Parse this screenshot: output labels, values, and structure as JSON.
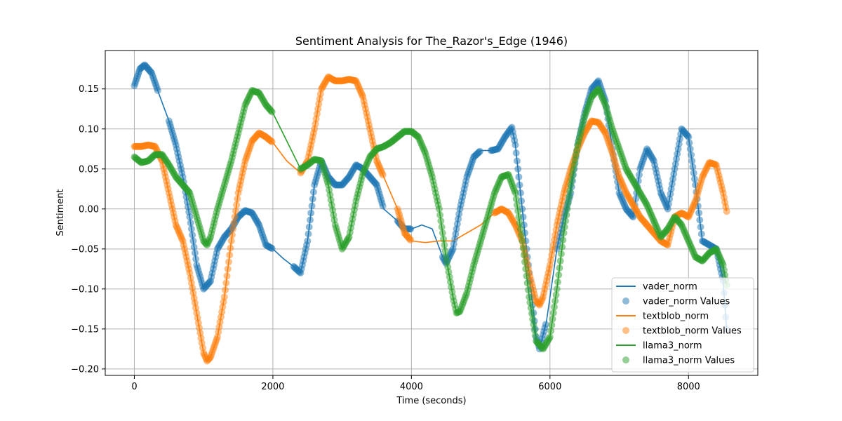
{
  "chart_data": {
    "type": "line",
    "title": "Sentiment Analysis for The_Razor's_Edge (1946)",
    "xlabel": "Time (seconds)",
    "ylabel": "Sentiment",
    "xlim": [
      -420,
      9000
    ],
    "ylim": [
      -0.208,
      0.198
    ],
    "xticks": [
      0,
      2000,
      4000,
      6000,
      8000
    ],
    "yticks": [
      -0.2,
      -0.15,
      -0.1,
      -0.05,
      0.0,
      0.05,
      0.1,
      0.15
    ],
    "ytick_labels": [
      "−0.20",
      "−0.15",
      "−0.10",
      "−0.05",
      "0.00",
      "0.05",
      "0.10",
      "0.15"
    ],
    "grid": true,
    "legend_position": "lower right",
    "legend": [
      {
        "label": "vader_norm",
        "kind": "line",
        "color": "#1f77b4"
      },
      {
        "label": "vader_norm Values",
        "kind": "marker",
        "color": "#1f77b4"
      },
      {
        "label": "textblob_norm",
        "kind": "line",
        "color": "#ff7f0e"
      },
      {
        "label": "textblob_norm Values",
        "kind": "marker",
        "color": "#ff7f0e"
      },
      {
        "label": "llama3_norm",
        "kind": "line",
        "color": "#2ca02c"
      },
      {
        "label": "llama3_norm Values",
        "kind": "marker",
        "color": "#2ca02c"
      }
    ],
    "series": [
      {
        "name": "vader_norm",
        "color": "#1f77b4",
        "points": [
          [
            0,
            0.154
          ],
          [
            80,
            0.175
          ],
          [
            150,
            0.18
          ],
          [
            250,
            0.17
          ],
          [
            350,
            0.145
          ],
          [
            500,
            0.11
          ],
          [
            600,
            0.08
          ],
          [
            700,
            0.04
          ],
          [
            800,
            -0.01
          ],
          [
            900,
            -0.07
          ],
          [
            1000,
            -0.1
          ],
          [
            1100,
            -0.09
          ],
          [
            1200,
            -0.05
          ],
          [
            1300,
            -0.035
          ],
          [
            1400,
            -0.025
          ],
          [
            1500,
            -0.01
          ],
          [
            1600,
            -0.002
          ],
          [
            1700,
            -0.005
          ],
          [
            1800,
            -0.02
          ],
          [
            1900,
            -0.045
          ],
          [
            2000,
            -0.05
          ],
          [
            2150,
            -0.062
          ],
          [
            2300,
            -0.072
          ],
          [
            2400,
            -0.08
          ],
          [
            2500,
            -0.04
          ],
          [
            2600,
            0.03
          ],
          [
            2700,
            0.06
          ],
          [
            2800,
            0.04
          ],
          [
            2900,
            0.03
          ],
          [
            3000,
            0.03
          ],
          [
            3100,
            0.04
          ],
          [
            3200,
            0.055
          ],
          [
            3300,
            0.05
          ],
          [
            3400,
            0.04
          ],
          [
            3500,
            0.03
          ],
          [
            3600,
            0.0
          ],
          [
            3800,
            -0.015
          ],
          [
            3900,
            -0.025
          ],
          [
            4000,
            -0.025
          ],
          [
            4150,
            -0.02
          ],
          [
            4300,
            -0.025
          ],
          [
            4450,
            -0.06
          ],
          [
            4500,
            -0.068
          ],
          [
            4600,
            -0.05
          ],
          [
            4700,
            0.0
          ],
          [
            4800,
            0.04
          ],
          [
            4900,
            0.065
          ],
          [
            5000,
            0.073
          ],
          [
            5150,
            0.073
          ],
          [
            5250,
            0.075
          ],
          [
            5350,
            0.09
          ],
          [
            5450,
            0.102
          ],
          [
            5500,
            0.08
          ],
          [
            5600,
            0.0
          ],
          [
            5700,
            -0.08
          ],
          [
            5800,
            -0.16
          ],
          [
            5850,
            -0.175
          ],
          [
            5950,
            -0.14
          ],
          [
            6100,
            -0.05
          ],
          [
            6200,
            -0.01
          ],
          [
            6300,
            0.02
          ],
          [
            6400,
            0.08
          ],
          [
            6500,
            0.12
          ],
          [
            6600,
            0.15
          ],
          [
            6700,
            0.16
          ],
          [
            6800,
            0.135
          ],
          [
            6900,
            0.075
          ],
          [
            7000,
            0.02
          ],
          [
            7100,
            0.0
          ],
          [
            7200,
            -0.01
          ],
          [
            7300,
            0.05
          ],
          [
            7400,
            0.075
          ],
          [
            7500,
            0.06
          ],
          [
            7600,
            0.02
          ],
          [
            7700,
            0.0
          ],
          [
            7800,
            0.05
          ],
          [
            7900,
            0.1
          ],
          [
            8000,
            0.09
          ],
          [
            8100,
            0.03
          ],
          [
            8200,
            -0.04
          ],
          [
            8300,
            -0.045
          ],
          [
            8400,
            -0.05
          ],
          [
            8500,
            -0.09
          ],
          [
            8550,
            -0.15
          ]
        ]
      },
      {
        "name": "textblob_norm",
        "color": "#ff7f0e",
        "points": [
          [
            0,
            0.078
          ],
          [
            100,
            0.078
          ],
          [
            200,
            0.08
          ],
          [
            300,
            0.078
          ],
          [
            400,
            0.06
          ],
          [
            500,
            0.02
          ],
          [
            600,
            -0.02
          ],
          [
            700,
            -0.04
          ],
          [
            800,
            -0.08
          ],
          [
            900,
            -0.13
          ],
          [
            1000,
            -0.18
          ],
          [
            1050,
            -0.19
          ],
          [
            1100,
            -0.185
          ],
          [
            1200,
            -0.16
          ],
          [
            1300,
            -0.11
          ],
          [
            1400,
            -0.04
          ],
          [
            1500,
            0.02
          ],
          [
            1600,
            0.06
          ],
          [
            1700,
            0.085
          ],
          [
            1800,
            0.095
          ],
          [
            1900,
            0.09
          ],
          [
            2000,
            0.083
          ],
          [
            2200,
            0.06
          ],
          [
            2400,
            0.045
          ],
          [
            2500,
            0.06
          ],
          [
            2600,
            0.1
          ],
          [
            2700,
            0.15
          ],
          [
            2800,
            0.165
          ],
          [
            2900,
            0.16
          ],
          [
            3000,
            0.16
          ],
          [
            3100,
            0.162
          ],
          [
            3200,
            0.16
          ],
          [
            3300,
            0.14
          ],
          [
            3400,
            0.1
          ],
          [
            3500,
            0.06
          ],
          [
            3600,
            0.04
          ],
          [
            3800,
            0.0
          ],
          [
            3900,
            -0.03
          ],
          [
            4000,
            -0.04
          ],
          [
            4200,
            -0.042
          ],
          [
            4400,
            -0.04
          ],
          [
            4600,
            -0.04
          ],
          [
            4800,
            -0.03
          ],
          [
            5000,
            -0.02
          ],
          [
            5200,
            -0.005
          ],
          [
            5300,
            0.0
          ],
          [
            5400,
            -0.005
          ],
          [
            5500,
            -0.02
          ],
          [
            5600,
            -0.04
          ],
          [
            5700,
            -0.08
          ],
          [
            5800,
            -0.115
          ],
          [
            5850,
            -0.12
          ],
          [
            5900,
            -0.11
          ],
          [
            6000,
            -0.07
          ],
          [
            6100,
            -0.02
          ],
          [
            6200,
            0.02
          ],
          [
            6300,
            0.05
          ],
          [
            6400,
            0.075
          ],
          [
            6500,
            0.095
          ],
          [
            6600,
            0.11
          ],
          [
            6700,
            0.108
          ],
          [
            6800,
            0.095
          ],
          [
            6900,
            0.07
          ],
          [
            7000,
            0.04
          ],
          [
            7100,
            0.02
          ],
          [
            7200,
            0.005
          ],
          [
            7300,
            -0.01
          ],
          [
            7400,
            -0.02
          ],
          [
            7500,
            -0.03
          ],
          [
            7600,
            -0.04
          ],
          [
            7700,
            -0.045
          ],
          [
            7800,
            -0.01
          ],
          [
            7900,
            -0.005
          ],
          [
            8000,
            -0.01
          ],
          [
            8100,
            0.01
          ],
          [
            8200,
            0.04
          ],
          [
            8300,
            0.058
          ],
          [
            8400,
            0.055
          ],
          [
            8500,
            0.02
          ],
          [
            8550,
            -0.003
          ]
        ]
      },
      {
        "name": "llama3_norm",
        "color": "#2ca02c",
        "points": [
          [
            0,
            0.065
          ],
          [
            100,
            0.058
          ],
          [
            200,
            0.06
          ],
          [
            300,
            0.068
          ],
          [
            400,
            0.068
          ],
          [
            500,
            0.055
          ],
          [
            600,
            0.04
          ],
          [
            700,
            0.03
          ],
          [
            800,
            0.02
          ],
          [
            900,
            -0.01
          ],
          [
            1000,
            -0.04
          ],
          [
            1050,
            -0.045
          ],
          [
            1100,
            -0.035
          ],
          [
            1200,
            0.0
          ],
          [
            1300,
            0.03
          ],
          [
            1400,
            0.06
          ],
          [
            1500,
            0.095
          ],
          [
            1600,
            0.13
          ],
          [
            1700,
            0.148
          ],
          [
            1800,
            0.145
          ],
          [
            1900,
            0.13
          ],
          [
            2000,
            0.12
          ],
          [
            2200,
            0.085
          ],
          [
            2400,
            0.05
          ],
          [
            2500,
            0.055
          ],
          [
            2600,
            0.062
          ],
          [
            2700,
            0.06
          ],
          [
            2800,
            0.03
          ],
          [
            2900,
            -0.02
          ],
          [
            3000,
            -0.05
          ],
          [
            3100,
            -0.035
          ],
          [
            3200,
            0.01
          ],
          [
            3300,
            0.045
          ],
          [
            3400,
            0.065
          ],
          [
            3500,
            0.075
          ],
          [
            3600,
            0.078
          ],
          [
            3700,
            0.083
          ],
          [
            3800,
            0.09
          ],
          [
            3900,
            0.097
          ],
          [
            4000,
            0.097
          ],
          [
            4100,
            0.09
          ],
          [
            4200,
            0.07
          ],
          [
            4300,
            0.04
          ],
          [
            4400,
            0.0
          ],
          [
            4500,
            -0.06
          ],
          [
            4600,
            -0.11
          ],
          [
            4650,
            -0.13
          ],
          [
            4700,
            -0.128
          ],
          [
            4800,
            -0.105
          ],
          [
            4900,
            -0.07
          ],
          [
            5000,
            -0.04
          ],
          [
            5100,
            -0.01
          ],
          [
            5200,
            0.02
          ],
          [
            5300,
            0.04
          ],
          [
            5400,
            0.043
          ],
          [
            5500,
            0.02
          ],
          [
            5600,
            -0.04
          ],
          [
            5700,
            -0.11
          ],
          [
            5800,
            -0.165
          ],
          [
            5900,
            -0.175
          ],
          [
            6000,
            -0.16
          ],
          [
            6100,
            -0.1
          ],
          [
            6200,
            -0.03
          ],
          [
            6300,
            0.03
          ],
          [
            6400,
            0.08
          ],
          [
            6500,
            0.115
          ],
          [
            6600,
            0.14
          ],
          [
            6700,
            0.15
          ],
          [
            6800,
            0.13
          ],
          [
            6900,
            0.1
          ],
          [
            7000,
            0.075
          ],
          [
            7100,
            0.05
          ],
          [
            7200,
            0.035
          ],
          [
            7300,
            0.02
          ],
          [
            7400,
            0.005
          ],
          [
            7500,
            -0.015
          ],
          [
            7600,
            -0.035
          ],
          [
            7700,
            -0.025
          ],
          [
            7800,
            -0.01
          ],
          [
            7900,
            -0.02
          ],
          [
            8000,
            -0.04
          ],
          [
            8100,
            -0.06
          ],
          [
            8200,
            -0.065
          ],
          [
            8300,
            -0.055
          ],
          [
            8400,
            -0.05
          ],
          [
            8500,
            -0.07
          ],
          [
            8550,
            -0.095
          ]
        ]
      }
    ]
  }
}
